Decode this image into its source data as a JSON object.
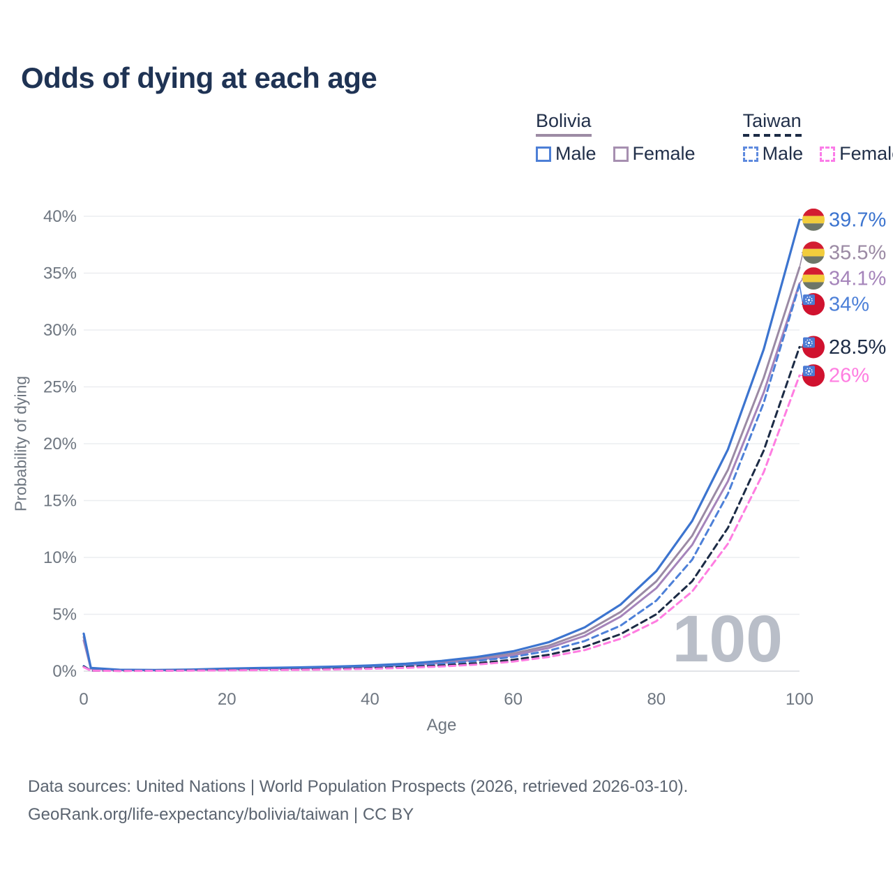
{
  "title": "Odds of dying at each age",
  "legend": {
    "groups": [
      {
        "id": "bolivia",
        "title": "Bolivia",
        "items": [
          {
            "id": "bolivia_male",
            "label": "Male"
          },
          {
            "id": "bolivia_female",
            "label": "Female"
          }
        ]
      },
      {
        "id": "taiwan",
        "title": "Taiwan",
        "items": [
          {
            "id": "taiwan_male",
            "label": "Male"
          },
          {
            "id": "taiwan_female",
            "label": "Female"
          }
        ]
      }
    ]
  },
  "colors": {
    "title": "#1f3354",
    "axis_text": "#6e7680",
    "grid_line": "#ebedf0",
    "axis_line": "#d8dbe0",
    "watermark": "#b9bec8",
    "bolivia_male": "#3c74cf",
    "bolivia_both": "#9b8aa4",
    "bolivia_female": "#a584ba",
    "taiwan_male": "#4d80d8",
    "taiwan_both": "#1c2b45",
    "taiwan_female": "#ff7de1",
    "flag_bolivia_red": "#d31d31",
    "flag_bolivia_yellow": "#f2cd3c",
    "flag_bolivia_green": "#6d7668",
    "flag_taiwan_red": "#d0122f",
    "flag_taiwan_blue": "#4c7cd4"
  },
  "chart_data": {
    "type": "line",
    "title": "Odds of dying at each age",
    "xlabel": "Age",
    "ylabel": "Probability of dying",
    "xlim": [
      0,
      100
    ],
    "ylim": [
      0,
      40
    ],
    "x_ticks": [
      0,
      20,
      40,
      60,
      80,
      100
    ],
    "y_ticks_percent": [
      0,
      5,
      10,
      15,
      20,
      25,
      30,
      35,
      40
    ],
    "grid": "horizontal",
    "legend_position": "top-right",
    "watermark": "100",
    "x": [
      0,
      1,
      5,
      10,
      15,
      20,
      25,
      30,
      35,
      40,
      45,
      50,
      55,
      60,
      65,
      70,
      75,
      80,
      85,
      90,
      95,
      100
    ],
    "series": [
      {
        "id": "bolivia_male",
        "name": "Bolivia Male",
        "country": "Bolivia",
        "sex": "Male",
        "style": "solid",
        "color_key": "bolivia_male",
        "flag": "bolivia",
        "end_label": "39.7%",
        "end_value": 39.7,
        "values": [
          3.3,
          0.28,
          0.12,
          0.1,
          0.14,
          0.22,
          0.28,
          0.33,
          0.4,
          0.5,
          0.65,
          0.9,
          1.25,
          1.75,
          2.55,
          3.85,
          5.85,
          8.8,
          13.2,
          19.5,
          28.3,
          39.7
        ]
      },
      {
        "id": "bolivia_both",
        "name": "Bolivia (both sexes)",
        "country": "Bolivia",
        "sex": "Both",
        "style": "solid",
        "color_key": "bolivia_both",
        "flag": "bolivia",
        "end_label": "35.5%",
        "end_value": 35.5,
        "values": [
          3.0,
          0.25,
          0.11,
          0.09,
          0.12,
          0.19,
          0.24,
          0.29,
          0.35,
          0.44,
          0.58,
          0.8,
          1.1,
          1.55,
          2.25,
          3.4,
          5.2,
          7.9,
          11.9,
          17.7,
          25.8,
          35.5
        ]
      },
      {
        "id": "bolivia_female",
        "name": "Bolivia Female",
        "country": "Bolivia",
        "sex": "Female",
        "style": "solid",
        "color_key": "bolivia_female",
        "flag": "bolivia",
        "end_label": "34.1%",
        "end_value": 34.1,
        "values": [
          2.7,
          0.22,
          0.1,
          0.08,
          0.11,
          0.16,
          0.2,
          0.25,
          0.31,
          0.4,
          0.52,
          0.72,
          1.0,
          1.4,
          2.05,
          3.1,
          4.8,
          7.3,
          11.1,
          16.7,
          24.5,
          34.1
        ]
      },
      {
        "id": "taiwan_male",
        "name": "Taiwan Male",
        "country": "Taiwan",
        "sex": "Male",
        "style": "dashed",
        "color_key": "taiwan_male",
        "flag": "taiwan",
        "end_label": "34%",
        "end_value": 34.0,
        "values": [
          0.45,
          0.05,
          0.03,
          0.04,
          0.08,
          0.12,
          0.15,
          0.19,
          0.25,
          0.34,
          0.47,
          0.65,
          0.9,
          1.25,
          1.8,
          2.65,
          4.0,
          6.2,
          9.8,
          15.6,
          23.6,
          34.0
        ]
      },
      {
        "id": "taiwan_both",
        "name": "Taiwan (both sexes)",
        "country": "Taiwan",
        "sex": "Both",
        "style": "dashed",
        "color_key": "taiwan_both",
        "flag": "taiwan",
        "end_label": "28.5%",
        "end_value": 28.5,
        "values": [
          0.4,
          0.045,
          0.025,
          0.035,
          0.06,
          0.09,
          0.11,
          0.14,
          0.19,
          0.26,
          0.36,
          0.5,
          0.7,
          1.0,
          1.45,
          2.15,
          3.25,
          5.0,
          7.9,
          12.6,
          19.4,
          28.5
        ]
      },
      {
        "id": "taiwan_female",
        "name": "Taiwan Female",
        "country": "Taiwan",
        "sex": "Female",
        "style": "dashed",
        "color_key": "taiwan_female",
        "flag": "taiwan",
        "end_label": "26%",
        "end_value": 26.0,
        "values": [
          0.35,
          0.04,
          0.02,
          0.03,
          0.05,
          0.07,
          0.09,
          0.11,
          0.15,
          0.21,
          0.29,
          0.41,
          0.58,
          0.84,
          1.25,
          1.85,
          2.85,
          4.4,
          7.0,
          11.2,
          17.5,
          26.0
        ]
      }
    ]
  },
  "footer": {
    "line1": "Data sources: United Nations | World Population Prospects (2026, retrieved 2026-03-10).",
    "line2": "GeoRank.org/life-expectancy/bolivia/taiwan | CC BY"
  }
}
